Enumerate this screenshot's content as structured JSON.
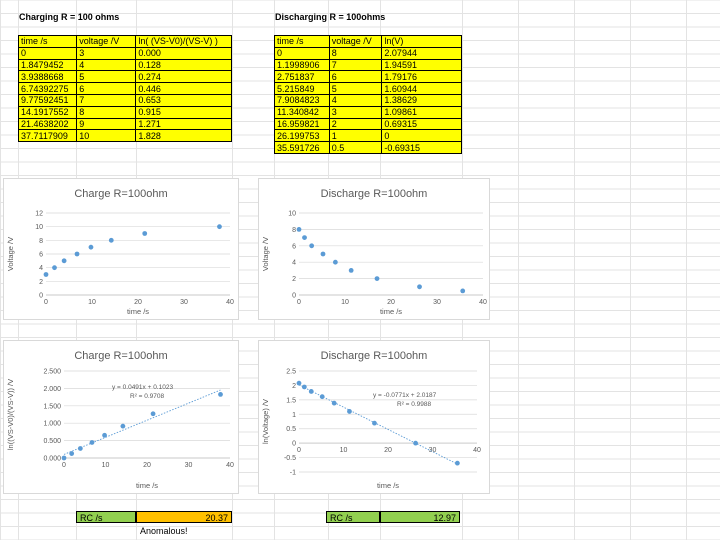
{
  "charging": {
    "title": "Charging R = 100 ohms",
    "headers": [
      "time /s",
      "voltage /V",
      "ln( (VS-V0)/(VS-V) )"
    ],
    "rows": [
      [
        "0",
        "3",
        "0.000"
      ],
      [
        "1.8479452",
        "4",
        "0.128"
      ],
      [
        "3.9388668",
        "5",
        "0.274"
      ],
      [
        "6.74392275",
        "6",
        "0.446"
      ],
      [
        "9.77592451",
        "7",
        "0.653"
      ],
      [
        "14.1917552",
        "8",
        "0.915"
      ],
      [
        "21.4638202",
        "9",
        "1.271"
      ],
      [
        "37.7117909",
        "10",
        "1.828"
      ]
    ]
  },
  "discharging": {
    "title": "Discharging R = 100ohms",
    "headers": [
      "time /s",
      "voltage /V",
      "ln(V)"
    ],
    "rows": [
      [
        "0",
        "8",
        "2.07944"
      ],
      [
        "1.1998906",
        "7",
        "1.94591"
      ],
      [
        "2.751837",
        "6",
        "1.79176"
      ],
      [
        "5.215849",
        "5",
        "1.60944"
      ],
      [
        "7.9084823",
        "4",
        "1.38629"
      ],
      [
        "11.340842",
        "3",
        "1.09861"
      ],
      [
        "16.959821",
        "2",
        "0.69315"
      ],
      [
        "26.199753",
        "1",
        "0"
      ],
      [
        "35.591726",
        "0.5",
        "-0.69315"
      ]
    ]
  },
  "chart_data": [
    {
      "type": "scatter",
      "title": "Charge R=100ohm",
      "xlabel": "time /s",
      "ylabel": "Voltage /V",
      "xlim": [
        0,
        40
      ],
      "ylim": [
        0,
        12
      ],
      "xticks": [
        "0",
        "10",
        "20",
        "30",
        "40"
      ],
      "yticks": [
        "0",
        "2",
        "4",
        "6",
        "8",
        "10",
        "12"
      ],
      "grid": true,
      "x": [
        0,
        1.8479452,
        3.9388668,
        6.74392275,
        9.77592451,
        14.1917552,
        21.4638202,
        37.7117909
      ],
      "y": [
        3,
        4,
        5,
        6,
        7,
        8,
        9,
        10
      ]
    },
    {
      "type": "scatter",
      "title": "Discharge R=100ohm",
      "xlabel": "time /s",
      "ylabel": "Voltage /V",
      "xlim": [
        0,
        40
      ],
      "ylim": [
        0,
        10
      ],
      "xticks": [
        "0",
        "10",
        "20",
        "30",
        "40"
      ],
      "yticks": [
        "0",
        "2",
        "4",
        "6",
        "8",
        "10"
      ],
      "grid": true,
      "x": [
        0,
        1.1998906,
        2.751837,
        5.215849,
        7.9084823,
        11.340842,
        16.959821,
        26.199753,
        35.591726
      ],
      "y": [
        8,
        7,
        6,
        5,
        4,
        3,
        2,
        1,
        0.5
      ]
    },
    {
      "type": "scatter",
      "title": "Charge R=100ohm",
      "xlabel": "time /s",
      "ylabel": "ln((VS-V0)/(VS-V)) /V",
      "xlim": [
        0,
        40
      ],
      "ylim": [
        0,
        2.5
      ],
      "xticks": [
        "0",
        "10",
        "20",
        "30",
        "40"
      ],
      "yticks": [
        "0.000",
        "0.500",
        "1.000",
        "1.500",
        "2.000",
        "2.500"
      ],
      "grid": true,
      "x": [
        0,
        1.8479452,
        3.9388668,
        6.74392275,
        9.77592451,
        14.1917552,
        21.4638202,
        37.7117909
      ],
      "y": [
        0,
        0.128,
        0.274,
        0.446,
        0.653,
        0.915,
        1.271,
        1.828
      ],
      "trendline": {
        "slope": 0.0491,
        "intercept": 0.1023
      },
      "equation": "y = 0.0491x + 0.1023",
      "r2": "R² = 0.9708"
    },
    {
      "type": "scatter",
      "title": "Discharge R=100ohm",
      "xlabel": "time /s",
      "ylabel": "ln(Voltage) /V",
      "xlim": [
        0,
        40
      ],
      "ylim": [
        -1,
        2.5
      ],
      "xticks": [
        "0",
        "10",
        "20",
        "30",
        "40"
      ],
      "yticks": [
        "-1",
        "-0.5",
        "0",
        "0.5",
        "1",
        "1.5",
        "2",
        "2.5"
      ],
      "grid": true,
      "x": [
        0,
        1.1998906,
        2.751837,
        5.215849,
        7.9084823,
        11.340842,
        16.959821,
        26.199753,
        35.591726
      ],
      "y": [
        2.07944,
        1.94591,
        1.79176,
        1.60944,
        1.38629,
        1.09861,
        0.69315,
        0,
        -0.69315
      ],
      "trendline": {
        "slope": -0.0771,
        "intercept": 2.0187
      },
      "equation": "y = -0.0771x + 2.0187",
      "r2": "R² = 0.9988"
    }
  ],
  "rc_charge": {
    "label": "RC /s",
    "value": "20.37",
    "note": "Anomalous!"
  },
  "rc_discharge": {
    "label": "RC /s",
    "value": "12.97"
  },
  "colors": {
    "point": "#5b9bd5",
    "cell_yellow": "#ffff00",
    "cell_green": "#92d050",
    "cell_orange": "#ffc000",
    "gridline": "#d9d9d9"
  }
}
